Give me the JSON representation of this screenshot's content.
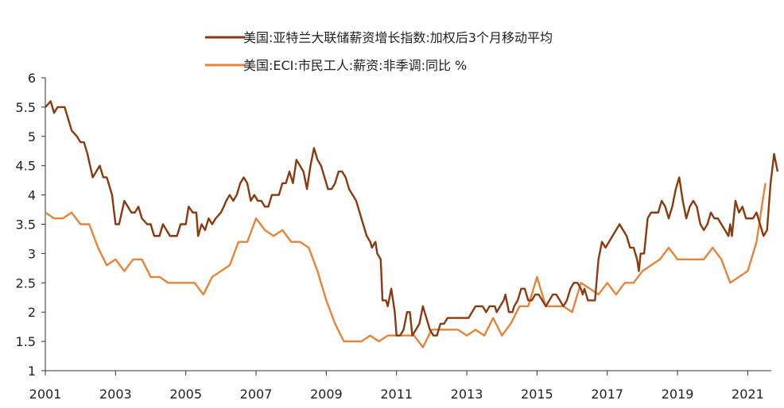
{
  "chart_data": {
    "type": "line",
    "title": "",
    "xlabel": "",
    "ylabel": "",
    "xlim": [
      2001,
      2021.67
    ],
    "ylim": [
      1,
      6
    ],
    "x_ticks": [
      2001,
      2003,
      2005,
      2007,
      2009,
      2011,
      2013,
      2015,
      2017,
      2019,
      2021
    ],
    "x_tick_labels": [
      "2001",
      "2003",
      "2005",
      "2007",
      "2009",
      "2011",
      "2013",
      "2015",
      "2017",
      "2019",
      "2021"
    ],
    "y_ticks": [
      1,
      1.5,
      2,
      2.5,
      3,
      3.5,
      4,
      4.5,
      5,
      5.5,
      6
    ],
    "y_tick_labels": [
      "1",
      "1.5",
      "2",
      "2.5",
      "3",
      "3.5",
      "4",
      "4.5",
      "5",
      "5.5",
      "6"
    ],
    "grid": false,
    "legend_position": "top",
    "series": [
      {
        "name": "美国:亚特兰大联储薪资增长指数:加权后3个月移动平均",
        "color": "#8B3A0F",
        "points": [
          [
            2001.0,
            5.5
          ],
          [
            2001.08,
            5.55
          ],
          [
            2001.15,
            5.6
          ],
          [
            2001.25,
            5.4
          ],
          [
            2001.35,
            5.5
          ],
          [
            2001.55,
            5.5
          ],
          [
            2001.65,
            5.3
          ],
          [
            2001.75,
            5.1
          ],
          [
            2001.9,
            5.0
          ],
          [
            2002.0,
            4.9
          ],
          [
            2002.1,
            4.9
          ],
          [
            2002.2,
            4.7
          ],
          [
            2002.35,
            4.3
          ],
          [
            2002.45,
            4.4
          ],
          [
            2002.55,
            4.5
          ],
          [
            2002.65,
            4.3
          ],
          [
            2002.75,
            4.3
          ],
          [
            2002.9,
            4.0
          ],
          [
            2003.0,
            3.5
          ],
          [
            2003.1,
            3.5
          ],
          [
            2003.25,
            3.9
          ],
          [
            2003.35,
            3.8
          ],
          [
            2003.45,
            3.7
          ],
          [
            2003.55,
            3.7
          ],
          [
            2003.65,
            3.8
          ],
          [
            2003.75,
            3.6
          ],
          [
            2003.9,
            3.5
          ],
          [
            2004.0,
            3.5
          ],
          [
            2004.1,
            3.3
          ],
          [
            2004.25,
            3.3
          ],
          [
            2004.35,
            3.5
          ],
          [
            2004.45,
            3.4
          ],
          [
            2004.55,
            3.3
          ],
          [
            2004.75,
            3.3
          ],
          [
            2004.85,
            3.5
          ],
          [
            2005.0,
            3.5
          ],
          [
            2005.08,
            3.8
          ],
          [
            2005.2,
            3.7
          ],
          [
            2005.3,
            3.7
          ],
          [
            2005.35,
            3.3
          ],
          [
            2005.45,
            3.5
          ],
          [
            2005.55,
            3.4
          ],
          [
            2005.65,
            3.6
          ],
          [
            2005.75,
            3.5
          ],
          [
            2005.85,
            3.6
          ],
          [
            2006.0,
            3.7
          ],
          [
            2006.08,
            3.8
          ],
          [
            2006.15,
            3.9
          ],
          [
            2006.25,
            4.0
          ],
          [
            2006.35,
            3.9
          ],
          [
            2006.45,
            4.0
          ],
          [
            2006.55,
            4.2
          ],
          [
            2006.65,
            4.3
          ],
          [
            2006.75,
            4.2
          ],
          [
            2006.85,
            3.9
          ],
          [
            2006.95,
            4.0
          ],
          [
            2007.05,
            3.9
          ],
          [
            2007.15,
            3.9
          ],
          [
            2007.25,
            3.8
          ],
          [
            2007.35,
            3.8
          ],
          [
            2007.45,
            4.0
          ],
          [
            2007.65,
            4.0
          ],
          [
            2007.75,
            4.2
          ],
          [
            2007.85,
            4.2
          ],
          [
            2007.95,
            4.4
          ],
          [
            2008.05,
            4.2
          ],
          [
            2008.15,
            4.6
          ],
          [
            2008.25,
            4.5
          ],
          [
            2008.35,
            4.4
          ],
          [
            2008.45,
            4.1
          ],
          [
            2008.55,
            4.5
          ],
          [
            2008.65,
            4.8
          ],
          [
            2008.75,
            4.6
          ],
          [
            2008.85,
            4.5
          ],
          [
            2008.95,
            4.3
          ],
          [
            2009.05,
            4.1
          ],
          [
            2009.15,
            4.1
          ],
          [
            2009.25,
            4.2
          ],
          [
            2009.35,
            4.4
          ],
          [
            2009.45,
            4.4
          ],
          [
            2009.55,
            4.3
          ],
          [
            2009.65,
            4.1
          ],
          [
            2009.75,
            4.0
          ],
          [
            2009.85,
            3.9
          ],
          [
            2009.95,
            3.7
          ],
          [
            2010.05,
            3.5
          ],
          [
            2010.15,
            3.3
          ],
          [
            2010.25,
            3.2
          ],
          [
            2010.3,
            3.1
          ],
          [
            2010.4,
            3.2
          ],
          [
            2010.45,
            3.0
          ],
          [
            2010.55,
            2.9
          ],
          [
            2010.6,
            2.2
          ],
          [
            2010.7,
            2.2
          ],
          [
            2010.75,
            2.1
          ],
          [
            2010.85,
            2.4
          ],
          [
            2010.95,
            2.0
          ],
          [
            2011.0,
            1.6
          ],
          [
            2011.1,
            1.6
          ],
          [
            2011.2,
            1.7
          ],
          [
            2011.3,
            2.0
          ],
          [
            2011.38,
            2.0
          ],
          [
            2011.45,
            1.6
          ],
          [
            2011.55,
            1.7
          ],
          [
            2011.65,
            1.8
          ],
          [
            2011.75,
            2.1
          ],
          [
            2011.85,
            1.9
          ],
          [
            2011.95,
            1.7
          ],
          [
            2012.05,
            1.6
          ],
          [
            2012.15,
            1.6
          ],
          [
            2012.25,
            1.8
          ],
          [
            2012.35,
            1.8
          ],
          [
            2012.45,
            1.9
          ],
          [
            2012.55,
            1.9
          ],
          [
            2012.65,
            1.9
          ],
          [
            2012.85,
            1.9
          ],
          [
            2013.05,
            1.9
          ],
          [
            2013.15,
            2.0
          ],
          [
            2013.25,
            2.1
          ],
          [
            2013.45,
            2.1
          ],
          [
            2013.55,
            2.0
          ],
          [
            2013.65,
            2.1
          ],
          [
            2013.8,
            2.1
          ],
          [
            2013.85,
            2.0
          ],
          [
            2013.95,
            2.1
          ],
          [
            2014.05,
            2.2
          ],
          [
            2014.1,
            2.3
          ],
          [
            2014.2,
            2.0
          ],
          [
            2014.3,
            2.0
          ],
          [
            2014.35,
            2.1
          ],
          [
            2014.45,
            2.2
          ],
          [
            2014.55,
            2.4
          ],
          [
            2014.65,
            2.4
          ],
          [
            2014.75,
            2.2
          ],
          [
            2014.85,
            2.2
          ],
          [
            2014.95,
            2.3
          ],
          [
            2015.05,
            2.3
          ],
          [
            2015.15,
            2.2
          ],
          [
            2015.25,
            2.1
          ],
          [
            2015.35,
            2.2
          ],
          [
            2015.45,
            2.3
          ],
          [
            2015.55,
            2.3
          ],
          [
            2015.65,
            2.2
          ],
          [
            2015.75,
            2.1
          ],
          [
            2015.85,
            2.2
          ],
          [
            2015.95,
            2.4
          ],
          [
            2016.05,
            2.5
          ],
          [
            2016.15,
            2.5
          ],
          [
            2016.25,
            2.4
          ],
          [
            2016.3,
            2.3
          ],
          [
            2016.35,
            2.4
          ],
          [
            2016.45,
            2.2
          ],
          [
            2016.65,
            2.2
          ],
          [
            2016.75,
            2.9
          ],
          [
            2016.85,
            3.2
          ],
          [
            2016.95,
            3.1
          ],
          [
            2017.05,
            3.2
          ],
          [
            2017.15,
            3.3
          ],
          [
            2017.25,
            3.4
          ],
          [
            2017.35,
            3.5
          ],
          [
            2017.45,
            3.4
          ],
          [
            2017.55,
            3.3
          ],
          [
            2017.65,
            3.1
          ],
          [
            2017.75,
            3.1
          ],
          [
            2017.85,
            2.9
          ],
          [
            2017.9,
            2.7
          ],
          [
            2017.95,
            3.0
          ],
          [
            2018.05,
            3.0
          ],
          [
            2018.15,
            3.6
          ],
          [
            2018.25,
            3.7
          ],
          [
            2018.35,
            3.7
          ],
          [
            2018.45,
            3.7
          ],
          [
            2018.55,
            3.9
          ],
          [
            2018.65,
            3.8
          ],
          [
            2018.75,
            3.6
          ],
          [
            2018.85,
            3.8
          ],
          [
            2018.95,
            4.1
          ],
          [
            2019.05,
            4.3
          ],
          [
            2019.15,
            3.9
          ],
          [
            2019.25,
            3.6
          ],
          [
            2019.35,
            3.8
          ],
          [
            2019.45,
            3.9
          ],
          [
            2019.55,
            3.8
          ],
          [
            2019.65,
            3.5
          ],
          [
            2019.75,
            3.4
          ],
          [
            2019.85,
            3.5
          ],
          [
            2019.95,
            3.7
          ],
          [
            2020.05,
            3.6
          ],
          [
            2020.15,
            3.6
          ],
          [
            2020.25,
            3.5
          ],
          [
            2020.35,
            3.4
          ],
          [
            2020.45,
            3.3
          ],
          [
            2020.5,
            3.5
          ],
          [
            2020.55,
            3.3
          ],
          [
            2020.65,
            3.9
          ],
          [
            2020.75,
            3.7
          ],
          [
            2020.85,
            3.8
          ],
          [
            2020.95,
            3.6
          ],
          [
            2021.05,
            3.6
          ],
          [
            2021.15,
            3.6
          ],
          [
            2021.25,
            3.7
          ],
          [
            2021.35,
            3.5
          ],
          [
            2021.45,
            3.3
          ],
          [
            2021.55,
            3.4
          ],
          [
            2021.65,
            4.2
          ],
          [
            2021.75,
            4.7
          ],
          [
            2021.85,
            4.4
          ]
        ]
      },
      {
        "name": "美国:ECI:市民工人:薪资:非季调:同比 %",
        "color": "#E8833A",
        "points": [
          [
            2001.0,
            3.7
          ],
          [
            2001.25,
            3.6
          ],
          [
            2001.5,
            3.6
          ],
          [
            2001.75,
            3.7
          ],
          [
            2002.0,
            3.5
          ],
          [
            2002.25,
            3.5
          ],
          [
            2002.5,
            3.1
          ],
          [
            2002.75,
            2.8
          ],
          [
            2003.0,
            2.9
          ],
          [
            2003.25,
            2.7
          ],
          [
            2003.5,
            2.9
          ],
          [
            2003.75,
            2.9
          ],
          [
            2004.0,
            2.6
          ],
          [
            2004.25,
            2.6
          ],
          [
            2004.5,
            2.5
          ],
          [
            2004.75,
            2.5
          ],
          [
            2005.0,
            2.5
          ],
          [
            2005.25,
            2.5
          ],
          [
            2005.5,
            2.3
          ],
          [
            2005.75,
            2.6
          ],
          [
            2006.0,
            2.7
          ],
          [
            2006.25,
            2.8
          ],
          [
            2006.5,
            3.2
          ],
          [
            2006.75,
            3.2
          ],
          [
            2007.0,
            3.6
          ],
          [
            2007.25,
            3.4
          ],
          [
            2007.5,
            3.3
          ],
          [
            2007.75,
            3.4
          ],
          [
            2008.0,
            3.2
          ],
          [
            2008.25,
            3.2
          ],
          [
            2008.5,
            3.1
          ],
          [
            2008.75,
            2.7
          ],
          [
            2009.0,
            2.2
          ],
          [
            2009.25,
            1.8
          ],
          [
            2009.5,
            1.5
          ],
          [
            2009.75,
            1.5
          ],
          [
            2010.0,
            1.5
          ],
          [
            2010.25,
            1.6
          ],
          [
            2010.5,
            1.5
          ],
          [
            2010.75,
            1.6
          ],
          [
            2011.0,
            1.6
          ],
          [
            2011.25,
            1.6
          ],
          [
            2011.5,
            1.6
          ],
          [
            2011.75,
            1.4
          ],
          [
            2012.0,
            1.7
          ],
          [
            2012.25,
            1.7
          ],
          [
            2012.5,
            1.7
          ],
          [
            2012.75,
            1.7
          ],
          [
            2013.0,
            1.6
          ],
          [
            2013.25,
            1.7
          ],
          [
            2013.5,
            1.6
          ],
          [
            2013.75,
            1.9
          ],
          [
            2014.0,
            1.6
          ],
          [
            2014.25,
            1.8
          ],
          [
            2014.5,
            2.1
          ],
          [
            2014.75,
            2.1
          ],
          [
            2015.0,
            2.6
          ],
          [
            2015.25,
            2.1
          ],
          [
            2015.5,
            2.1
          ],
          [
            2015.75,
            2.1
          ],
          [
            2016.0,
            2.0
          ],
          [
            2016.25,
            2.5
          ],
          [
            2016.5,
            2.4
          ],
          [
            2016.75,
            2.3
          ],
          [
            2017.0,
            2.5
          ],
          [
            2017.25,
            2.3
          ],
          [
            2017.5,
            2.5
          ],
          [
            2017.75,
            2.5
          ],
          [
            2018.0,
            2.7
          ],
          [
            2018.25,
            2.8
          ],
          [
            2018.5,
            2.9
          ],
          [
            2018.75,
            3.1
          ],
          [
            2019.0,
            2.9
          ],
          [
            2019.25,
            2.9
          ],
          [
            2019.5,
            2.9
          ],
          [
            2019.75,
            2.9
          ],
          [
            2020.0,
            3.1
          ],
          [
            2020.25,
            2.9
          ],
          [
            2020.5,
            2.5
          ],
          [
            2020.75,
            2.6
          ],
          [
            2021.0,
            2.7
          ],
          [
            2021.25,
            3.2
          ],
          [
            2021.5,
            4.2
          ]
        ]
      }
    ]
  }
}
